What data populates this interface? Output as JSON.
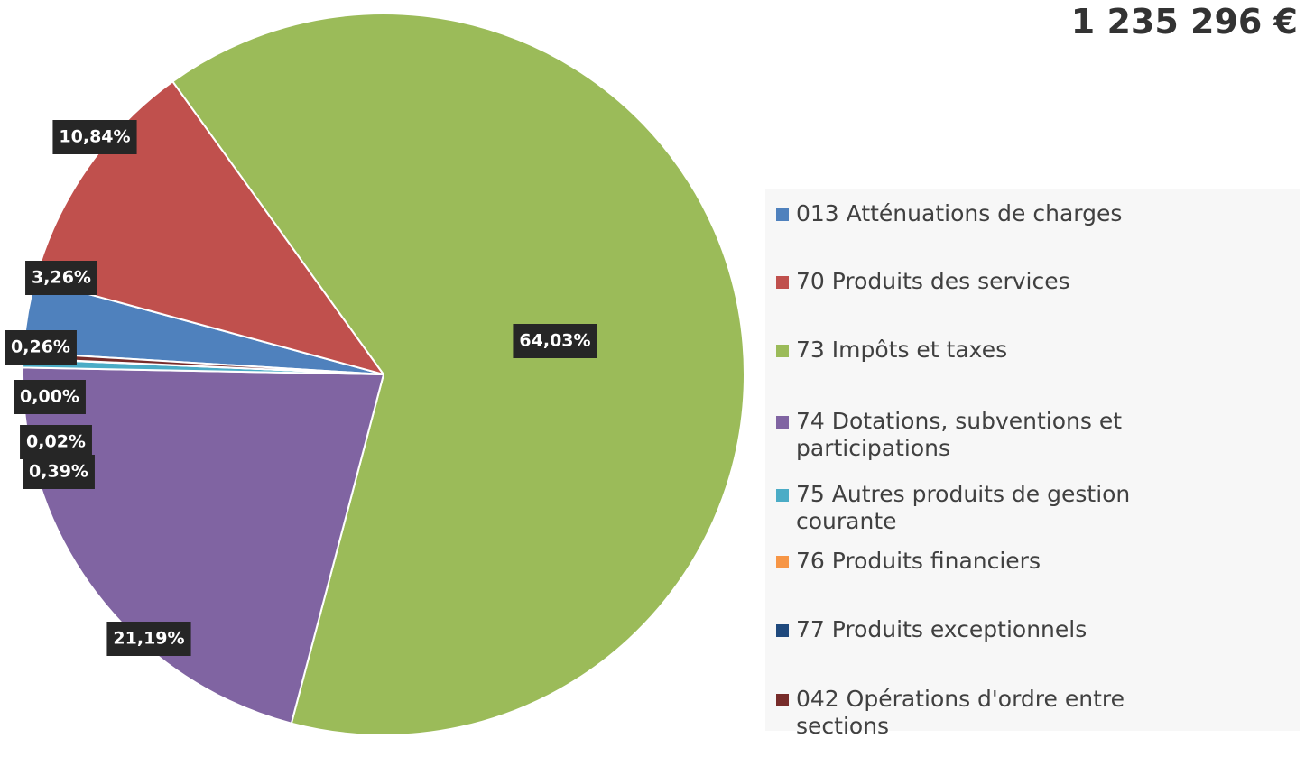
{
  "chart_data": {
    "type": "pie",
    "title": "1 235 296 €",
    "categories": [
      "013 Atténuations de charges",
      "70 Produits des services",
      "73 Impôts et taxes",
      "74 Dotations, subventions et participations",
      "75 Autres produits de gestion courante",
      "76 Produits financiers",
      "77 Produits exceptionnels",
      "042 Opérations d'ordre entre sections"
    ],
    "values": [
      3.26,
      10.84,
      64.03,
      21.19,
      0.39,
      0.02,
      0.0,
      0.26
    ],
    "value_labels": [
      "3,26%",
      "10,84%",
      "64,03%",
      "21,19%",
      "0,39%",
      "0,02%",
      "0,00%",
      "0,26%"
    ],
    "colors": [
      "#4f81bd",
      "#c0504d",
      "#9bbb59",
      "#8064a2",
      "#4bacc6",
      "#f79646",
      "#1f497d",
      "#772c2a"
    ],
    "legend": "right"
  }
}
